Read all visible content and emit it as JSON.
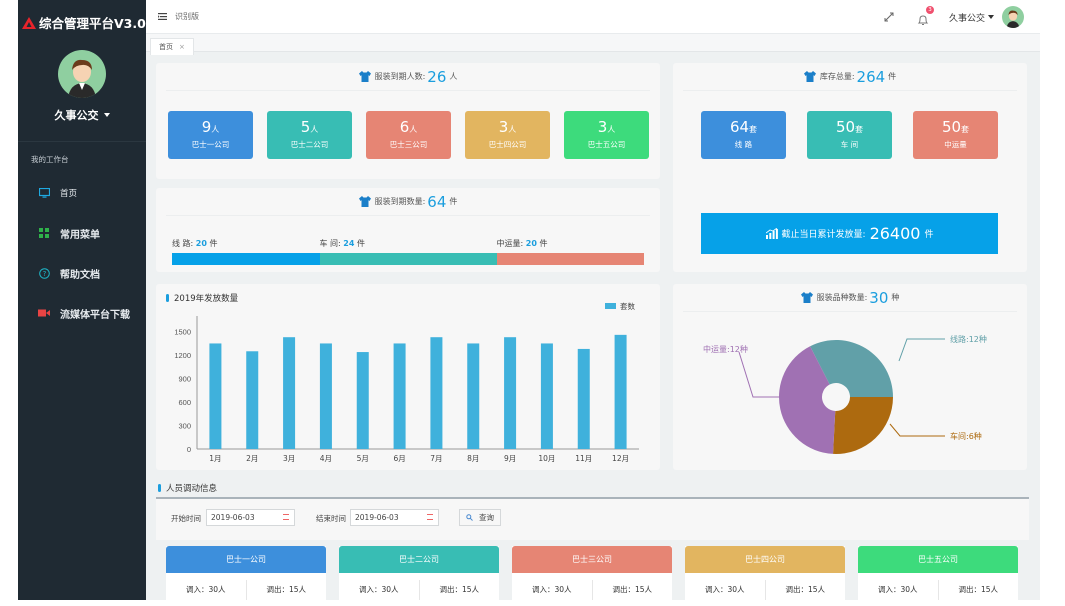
{
  "app": {
    "title": "综合管理平台V3.0",
    "version_label": "识别版",
    "user": "久事公交",
    "notification_count": "3"
  },
  "sidebar": {
    "section_label": "我的工作台",
    "items": [
      {
        "label": "首页",
        "icon": "monitor-icon"
      },
      {
        "label": "常用菜单",
        "icon": "grid-icon"
      },
      {
        "label": "帮助文档",
        "icon": "help-circle-icon"
      },
      {
        "label": "流媒体平台下载",
        "icon": "video-camera-icon"
      }
    ]
  },
  "tabs": [
    {
      "label": "首页",
      "close": "×"
    }
  ],
  "expire_people": {
    "title": "服装到期人数:",
    "total": "26",
    "unit": "人",
    "companies": [
      {
        "value": "9",
        "unit": "人",
        "name": "巴士一公司",
        "color": "#3d8fdc"
      },
      {
        "value": "5",
        "unit": "人",
        "name": "巴士二公司",
        "color": "#38bdb4"
      },
      {
        "value": "6",
        "unit": "人",
        "name": "巴士三公司",
        "color": "#e68574"
      },
      {
        "value": "3",
        "unit": "人",
        "name": "巴士四公司",
        "color": "#e2b560"
      },
      {
        "value": "3",
        "unit": "人",
        "name": "巴士五公司",
        "color": "#3ddb7c"
      }
    ]
  },
  "expire_items": {
    "title": "服装到期数量:",
    "total": "64",
    "unit": "件",
    "segments": [
      {
        "label": "线 路:",
        "value": 20,
        "unit": "件",
        "color": "#06a1e8"
      },
      {
        "label": "车 间:",
        "value": 24,
        "unit": "件",
        "color": "#38bdb4"
      },
      {
        "label": "中运量:",
        "value": 20,
        "unit": "件",
        "color": "#e68574"
      }
    ]
  },
  "inventory": {
    "title": "库存总量:",
    "total": "264",
    "unit": "件",
    "tiles": [
      {
        "value": "64",
        "unit": "套",
        "name": "线  路",
        "color": "#3d8fdc"
      },
      {
        "value": "50",
        "unit": "套",
        "name": "车  间",
        "color": "#38bdb4"
      },
      {
        "value": "50",
        "unit": "套",
        "name": "中运量",
        "color": "#e68574"
      }
    ],
    "cumulative_label": "截止当日累计发放量:",
    "cumulative_value": "26400",
    "cumulative_unit": "件"
  },
  "chart_data": [
    {
      "type": "bar",
      "title": "2019年发放数量",
      "legend": [
        "套数"
      ],
      "legend_position": "top-right",
      "categories": [
        "1月",
        "2月",
        "3月",
        "4月",
        "5月",
        "6月",
        "7月",
        "8月",
        "9月",
        "10月",
        "11月",
        "12月"
      ],
      "series": [
        {
          "name": "套数",
          "values": [
            1350,
            1250,
            1430,
            1350,
            1240,
            1350,
            1430,
            1350,
            1430,
            1350,
            1280,
            1460
          ],
          "color": "#3fb1dc"
        }
      ],
      "yticks": [
        0,
        300,
        600,
        900,
        1200,
        1500
      ],
      "ylim": [
        0,
        1650
      ],
      "xlabel": "",
      "ylabel": "",
      "grid": false
    },
    {
      "type": "pie",
      "title": "服装品种数量:",
      "total": "30",
      "unit": "种",
      "rose": true,
      "slices": [
        {
          "name": "线路",
          "value": 12,
          "label": "线路:12种",
          "color": "#61a0a8"
        },
        {
          "name": "车间",
          "value": 6,
          "label": "车间:6种",
          "color": "#ad6a0f"
        },
        {
          "name": "中运量",
          "value": 12,
          "label": "中运量:12种",
          "color": "#a071b3"
        }
      ]
    }
  ],
  "transfer": {
    "title": "人员调动信息",
    "start_label": "开始时间",
    "start_value": "2019-06-03",
    "end_label": "结束时间",
    "end_value": "2019-06-03",
    "query_label": "查询",
    "companies": [
      {
        "name": "巴士一公司",
        "in": "调入：30人",
        "out": "调出：15人",
        "color": "#3d8fdc"
      },
      {
        "name": "巴士二公司",
        "in": "调入：30人",
        "out": "调出：15人",
        "color": "#38bdb4"
      },
      {
        "name": "巴士三公司",
        "in": "调入：30人",
        "out": "调出：15人",
        "color": "#e68574"
      },
      {
        "name": "巴士四公司",
        "in": "调入：30人",
        "out": "调出：15人",
        "color": "#e2b560"
      },
      {
        "name": "巴士五公司",
        "in": "调入：30人",
        "out": "调出：15人",
        "color": "#3ddb7c"
      }
    ]
  }
}
